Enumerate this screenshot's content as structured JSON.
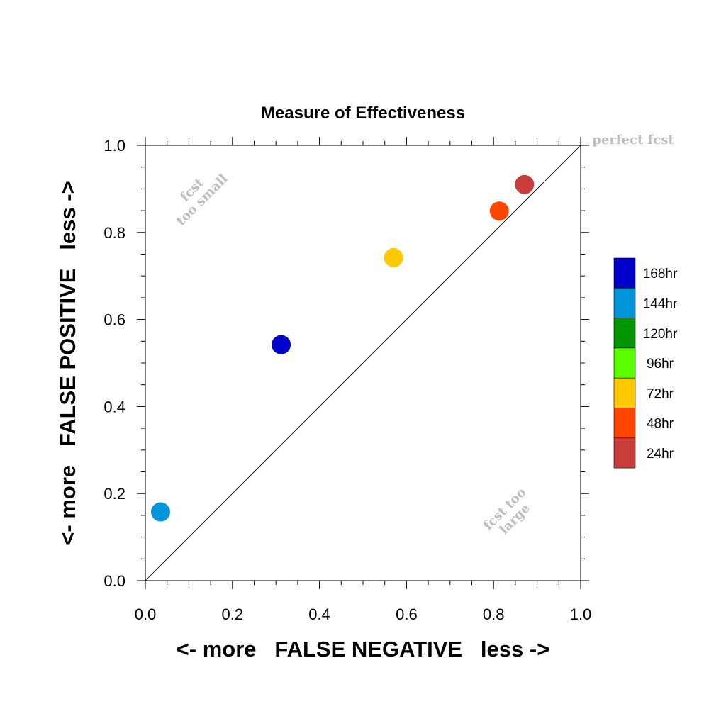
{
  "chart_data": {
    "type": "scatter",
    "title": "Measure of Effectiveness",
    "xlabel": "<- more   FALSE NEGATIVE   less ->",
    "ylabel": "<- more   FALSE POSITIVE   less ->",
    "xlim": [
      0,
      1
    ],
    "ylim": [
      0,
      1
    ],
    "xticks": [
      "0.0",
      "0.2",
      "0.4",
      "0.6",
      "0.8",
      "1.0"
    ],
    "yticks": [
      "0.0",
      "0.2",
      "0.4",
      "0.6",
      "0.8",
      "1.0"
    ],
    "grid": false,
    "legend_position": "right",
    "annotations": {
      "perfect": "perfect fcst",
      "too_small_1": "fcst",
      "too_small_2": "too small",
      "too_large_1": "fcst too",
      "too_large_2": "large"
    },
    "legend": [
      {
        "label": "168hr",
        "color": "#0000c8"
      },
      {
        "label": "144hr",
        "color": "#0096dc"
      },
      {
        "label": "120hr",
        "color": "#009600"
      },
      {
        "label": "96hr",
        "color": "#5aff00"
      },
      {
        "label": "72hr",
        "color": "#ffc800"
      },
      {
        "label": "48hr",
        "color": "#ff4600"
      },
      {
        "label": "24hr",
        "color": "#c83c3c"
      }
    ],
    "points": [
      {
        "label": "144hr",
        "x": 0.035,
        "y": 0.158,
        "color": "#0096dc"
      },
      {
        "label": "168hr",
        "x": 0.312,
        "y": 0.542,
        "color": "#0000c8"
      },
      {
        "label": "72hr",
        "x": 0.57,
        "y": 0.742,
        "color": "#ffc800"
      },
      {
        "label": "48hr",
        "x": 0.813,
        "y": 0.849,
        "color": "#ff4600"
      },
      {
        "label": "24hr",
        "x": 0.871,
        "y": 0.91,
        "color": "#c83c3c"
      }
    ]
  }
}
